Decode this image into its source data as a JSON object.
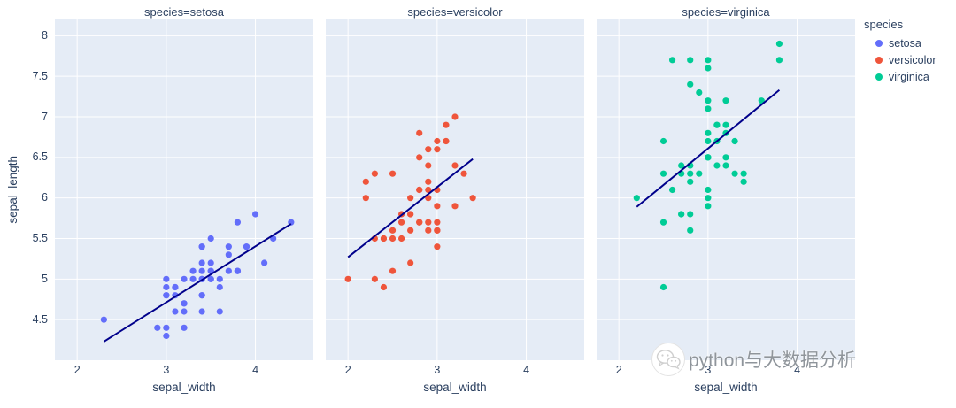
{
  "chart_data": {
    "type": "scatter",
    "title": "",
    "xlabel": "sepal_width",
    "ylabel": "sepal_length",
    "facet_titles": [
      "species=setosa",
      "species=versicolor",
      "species=virginica"
    ],
    "x_ticks": [
      "2",
      "3",
      "4"
    ],
    "x_tick_values": [
      2,
      3,
      4
    ],
    "y_ticks": [
      "4.5",
      "5",
      "5.5",
      "6",
      "6.5",
      "7",
      "7.5",
      "8"
    ],
    "y_tick_values": [
      4.5,
      5,
      5.5,
      6,
      6.5,
      7,
      7.5,
      8
    ],
    "x_range": [
      1.75,
      4.65
    ],
    "y_range": [
      4.0,
      8.2
    ],
    "plot_bgcolor": "#E5ECF6",
    "grid_color": "#ffffff",
    "text_color": "#2a3f5f",
    "trendline_color": "#00008B",
    "legend_position": "top-right",
    "grid": true,
    "series": [
      {
        "name": "setosa",
        "color": "#636EFA",
        "x": [
          3.5,
          3.0,
          3.2,
          3.1,
          3.6,
          3.9,
          3.4,
          3.4,
          2.9,
          3.1,
          3.7,
          3.4,
          3.0,
          3.0,
          4.0,
          4.4,
          3.9,
          3.5,
          3.8,
          3.8,
          3.4,
          3.7,
          3.6,
          3.3,
          3.4,
          3.0,
          3.4,
          3.5,
          3.4,
          3.2,
          3.1,
          3.4,
          4.1,
          4.2,
          3.1,
          3.2,
          3.5,
          3.6,
          3.0,
          3.4,
          3.5,
          2.3,
          3.2,
          3.5,
          3.8,
          3.0,
          3.8,
          3.2,
          3.7,
          3.3
        ],
        "y": [
          5.1,
          4.9,
          4.7,
          4.6,
          5.0,
          5.4,
          4.6,
          5.0,
          4.4,
          4.9,
          5.4,
          4.8,
          4.8,
          4.3,
          5.8,
          5.7,
          5.4,
          5.1,
          5.7,
          5.1,
          5.4,
          5.1,
          4.6,
          5.1,
          4.8,
          5.0,
          5.0,
          5.2,
          5.2,
          4.7,
          4.8,
          5.4,
          5.2,
          5.5,
          4.9,
          5.0,
          5.5,
          4.9,
          4.4,
          5.1,
          5.0,
          4.5,
          4.4,
          5.0,
          5.1,
          4.8,
          5.1,
          4.6,
          5.3,
          5.0
        ],
        "trend": {
          "x1": 2.3,
          "y1": 4.23,
          "x2": 4.4,
          "y2": 5.68
        }
      },
      {
        "name": "versicolor",
        "color": "#EF553B",
        "x": [
          3.2,
          3.2,
          3.1,
          2.3,
          2.8,
          2.8,
          3.3,
          2.4,
          2.9,
          2.7,
          2.0,
          3.0,
          2.2,
          2.9,
          2.9,
          3.1,
          3.0,
          2.7,
          2.2,
          2.5,
          3.2,
          2.8,
          2.5,
          2.8,
          2.9,
          3.0,
          2.8,
          3.0,
          2.9,
          2.6,
          2.4,
          2.4,
          2.7,
          2.7,
          3.0,
          3.4,
          3.1,
          2.3,
          3.0,
          2.5,
          2.6,
          3.0,
          2.6,
          2.3,
          2.7,
          3.0,
          2.9,
          2.9,
          2.5,
          2.8
        ],
        "y": [
          7.0,
          6.4,
          6.9,
          5.5,
          6.5,
          5.7,
          6.3,
          4.9,
          6.6,
          5.2,
          5.0,
          5.9,
          6.0,
          6.1,
          5.6,
          6.7,
          5.6,
          5.8,
          6.2,
          5.6,
          5.9,
          6.1,
          6.3,
          6.1,
          6.4,
          6.6,
          6.8,
          6.7,
          6.0,
          5.7,
          5.5,
          5.5,
          5.8,
          6.0,
          5.4,
          6.0,
          6.7,
          6.3,
          5.6,
          5.5,
          5.5,
          6.1,
          5.8,
          5.0,
          5.6,
          5.7,
          5.7,
          6.2,
          5.1,
          5.7
        ],
        "trend": {
          "x1": 2.0,
          "y1": 5.27,
          "x2": 3.4,
          "y2": 6.48
        }
      },
      {
        "name": "virginica",
        "color": "#00CC96",
        "x": [
          3.3,
          2.7,
          3.0,
          2.9,
          3.0,
          3.0,
          2.5,
          2.9,
          2.5,
          3.6,
          3.2,
          2.7,
          3.0,
          2.5,
          2.8,
          3.2,
          3.0,
          3.8,
          2.6,
          2.2,
          3.2,
          2.8,
          2.8,
          2.7,
          3.3,
          3.2,
          2.8,
          3.0,
          2.8,
          3.0,
          2.8,
          3.8,
          2.8,
          2.8,
          2.6,
          3.0,
          3.4,
          3.1,
          3.0,
          3.1,
          3.1,
          3.1,
          2.7,
          3.2,
          3.3,
          3.0,
          2.5,
          3.0,
          3.4,
          3.0
        ],
        "y": [
          6.3,
          5.8,
          7.1,
          6.3,
          6.5,
          7.6,
          4.9,
          7.3,
          6.7,
          7.2,
          6.5,
          6.4,
          6.8,
          5.7,
          5.8,
          6.4,
          6.5,
          7.7,
          7.7,
          6.0,
          6.9,
          5.6,
          7.7,
          6.3,
          6.7,
          7.2,
          6.2,
          6.1,
          6.4,
          7.2,
          7.4,
          7.9,
          6.4,
          6.3,
          6.1,
          7.7,
          6.3,
          6.4,
          6.0,
          6.9,
          6.7,
          6.9,
          5.8,
          6.8,
          6.7,
          6.7,
          6.3,
          6.5,
          6.2,
          5.9
        ],
        "trend": {
          "x1": 2.2,
          "y1": 5.89,
          "x2": 3.8,
          "y2": 7.33
        }
      }
    ]
  },
  "legend": {
    "title": "species",
    "items": [
      {
        "label": "setosa",
        "color": "#636EFA"
      },
      {
        "label": "versicolor",
        "color": "#EF553B"
      },
      {
        "label": "virginica",
        "color": "#00CC96"
      }
    ]
  },
  "watermark": {
    "icon": "wechat-icon",
    "text": "python与大数据分析"
  }
}
